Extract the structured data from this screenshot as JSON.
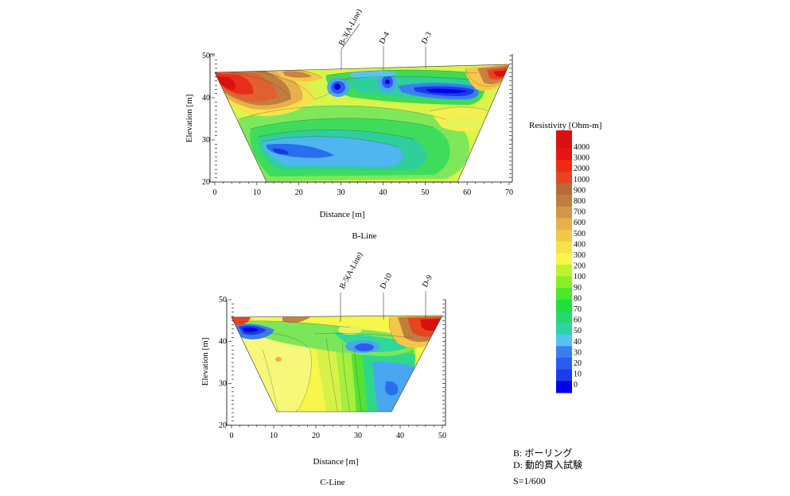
{
  "palette": [
    "#0000e6",
    "#1a3cf0",
    "#2a5cf0",
    "#3a7ef0",
    "#4aa6f0",
    "#55c4f0",
    "#2ed3a6",
    "#26d86a",
    "#1ee03c",
    "#4ce82a",
    "#8aee2a",
    "#bdf22f",
    "#e2f53a",
    "#f6f64b",
    "#f6e24a",
    "#f2c84a",
    "#e8b04a",
    "#d49548",
    "#c07e3e",
    "#b86a3a",
    "#d85a2a",
    "#e8441e",
    "#f02a14",
    "#e81414",
    "#d81010"
  ],
  "legend": {
    "title": "Resistivity [Ohm-m]",
    "labels": [
      "4000",
      "3000",
      "2000",
      "1000",
      "900",
      "800",
      "700",
      "600",
      "500",
      "400",
      "300",
      "200",
      "100",
      "90",
      "80",
      "70",
      "60",
      "50",
      "40",
      "30",
      "20",
      "10",
      "0"
    ]
  },
  "notes": {
    "line1": "B: ボーリング",
    "line2": "D: 動的貫入試験",
    "scale": "S=1/600"
  },
  "chart_data": [
    {
      "type": "heatmap",
      "title": "B-Line",
      "xlabel": "Distance [m]",
      "ylabel": "Elevation [m]",
      "xlim": [
        0,
        70
      ],
      "ylim": [
        20,
        50
      ],
      "xticks": [
        "0",
        "10",
        "20",
        "30",
        "40",
        "50",
        "60",
        "70"
      ],
      "yticks": [
        "20",
        "30",
        "40",
        "50"
      ],
      "color_scale": [
        "0",
        "10",
        "20",
        "30",
        "40",
        "50",
        "60",
        "70",
        "80",
        "90",
        "100",
        "200",
        "300",
        "400",
        "500",
        "600",
        "700",
        "800",
        "900",
        "1000",
        "2000",
        "3000",
        "4000"
      ],
      "boreholes": [
        {
          "label": "B-3(A-Line)",
          "x": 30
        },
        {
          "label": "D-4",
          "x": 40
        },
        {
          "label": "D-3",
          "x": 50
        }
      ]
    },
    {
      "type": "heatmap",
      "title": "C-Line",
      "xlabel": "Distance [m]",
      "ylabel": "Elevation [m]",
      "xlim": [
        0,
        50
      ],
      "ylim": [
        20,
        50
      ],
      "xticks": [
        "0",
        "10",
        "20",
        "30",
        "40",
        "50"
      ],
      "yticks": [
        "20",
        "30",
        "40",
        "50"
      ],
      "color_scale": [
        "0",
        "10",
        "20",
        "30",
        "40",
        "50",
        "60",
        "70",
        "80",
        "90",
        "100",
        "200",
        "300",
        "400",
        "500",
        "600",
        "700",
        "800",
        "900",
        "1000",
        "2000",
        "3000",
        "4000"
      ],
      "boreholes": [
        {
          "label": "B-5(A-Line)",
          "x": 26
        },
        {
          "label": "D-10",
          "x": 36
        },
        {
          "label": "D-9",
          "x": 46
        }
      ]
    }
  ]
}
